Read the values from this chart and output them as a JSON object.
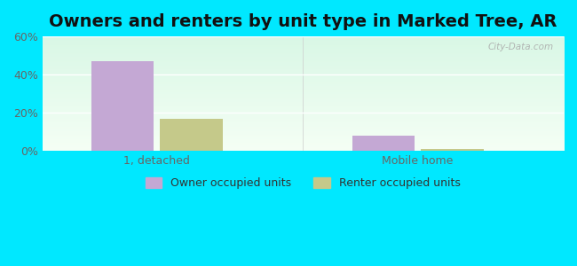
{
  "title": "Owners and renters by unit type in Marked Tree, AR",
  "categories": [
    "1, detached",
    "Mobile home"
  ],
  "owner_values": [
    47,
    8
  ],
  "renter_values": [
    17,
    1
  ],
  "owner_color": "#c4a8d4",
  "renter_color": "#c5c98a",
  "ylim": [
    0,
    60
  ],
  "yticks": [
    0,
    20,
    40,
    60
  ],
  "ytick_labels": [
    "0%",
    "20%",
    "40%",
    "60%"
  ],
  "background_outer": "#00e8ff",
  "title_fontsize": 14,
  "tick_color": "#666666",
  "legend_labels": [
    "Owner occupied units",
    "Renter occupied units"
  ],
  "bar_width": 0.12,
  "group_positions": [
    0.22,
    0.72
  ],
  "xlim": [
    0.0,
    1.0
  ],
  "watermark": "City-Data.com"
}
